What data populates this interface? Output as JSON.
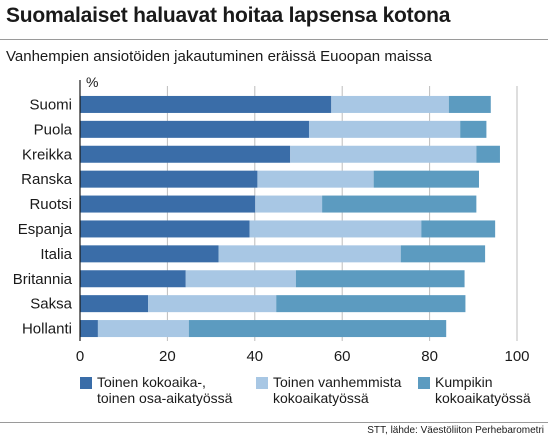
{
  "header": {
    "title": "Suomalaiset haluavat hoitaa lapsensa kotona",
    "subtitle": "Vanhempien ansiotöiden jakautuminen eräissä Euoopan maissa"
  },
  "footer": {
    "source": "STT, lähde: Väestöliiton Perhebarometri"
  },
  "colors": {
    "dark": "#3a6da8",
    "mid": "#5c9bc0",
    "light": "#a8c7e4",
    "grid": "#bdbdbd"
  },
  "chart_data": {
    "type": "bar",
    "orientation": "horizontal",
    "stacked": true,
    "unit_label": "%",
    "xlim": [
      0,
      100
    ],
    "xticks": [
      "0",
      "20",
      "40",
      "60",
      "80",
      "100"
    ],
    "categories": [
      "Suomi",
      "Puola",
      "Kreikka",
      "Ranska",
      "Ruotsi",
      "Espanja",
      "Italia",
      "Britannia",
      "Saksa",
      "Hollanti"
    ],
    "series": [
      {
        "name_lines": [
          "Toinen kokoaika-,",
          "toinen osa-aikatyössä"
        ],
        "color": "#3a6da8",
        "values": [
          57.5,
          52.4,
          48.1,
          40.6,
          40.1,
          38.8,
          31.7,
          24.2,
          15.6,
          4.1
        ]
      },
      {
        "name_lines": [
          "Toinen vanhemmista",
          "kokoaikatyössä"
        ],
        "color": "#a8c7e4",
        "values": [
          26.9,
          34.6,
          42.6,
          26.6,
          15.3,
          39.3,
          41.7,
          25.2,
          29.3,
          20.8
        ]
      },
      {
        "name_lines": [
          "Kumpikin",
          "kokoaikatyössä"
        ],
        "color": "#5c9bc0",
        "values": [
          9.6,
          6.0,
          5.4,
          24.1,
          35.3,
          16.9,
          19.3,
          38.6,
          43.3,
          58.9
        ]
      }
    ],
    "grid": true,
    "legend_position": "bottom"
  }
}
